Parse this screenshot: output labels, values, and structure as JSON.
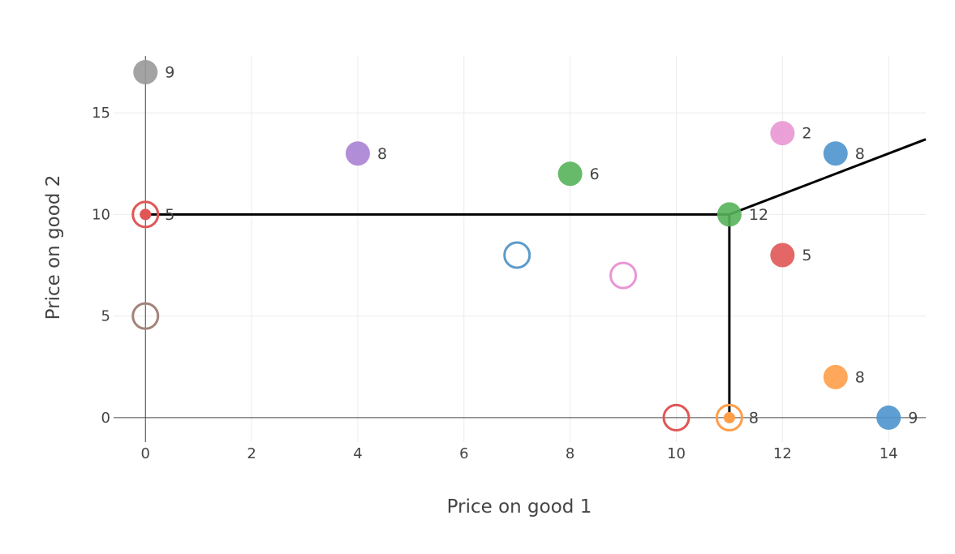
{
  "chart_data": {
    "type": "scatter",
    "title": "",
    "xlabel": "Price on good 1",
    "ylabel": "Price on good 2",
    "xlim": [
      -0.6,
      14.7
    ],
    "ylim": [
      -1.2,
      17.8
    ],
    "x_ticks": [
      0,
      2,
      4,
      6,
      8,
      10,
      12,
      14
    ],
    "y_ticks": [
      0,
      5,
      10,
      15
    ],
    "x_tick_labels": [
      "0",
      "2",
      "4",
      "6",
      "8",
      "10",
      "12",
      "14"
    ],
    "y_tick_labels": [
      "0",
      "5",
      "10",
      "15"
    ],
    "grid": true,
    "legend": "none",
    "points": [
      {
        "x": 0,
        "y": 17,
        "label": "9",
        "color": "#999999",
        "style": "filled"
      },
      {
        "x": 4,
        "y": 13,
        "label": "8",
        "color": "#a882d3",
        "style": "filled"
      },
      {
        "x": 8,
        "y": 12,
        "label": "6",
        "color": "#56b35a",
        "style": "filled"
      },
      {
        "x": 12,
        "y": 14,
        "label": "2",
        "color": "#e996d3",
        "style": "filled"
      },
      {
        "x": 13,
        "y": 13,
        "label": "8",
        "color": "#4e94cd",
        "style": "filled"
      },
      {
        "x": 0,
        "y": 10,
        "label": "5",
        "color": "#e05656",
        "style": "filled-ring"
      },
      {
        "x": 11,
        "y": 10,
        "label": "12",
        "color": "#56b35a",
        "style": "filled"
      },
      {
        "x": 12,
        "y": 8,
        "label": "5",
        "color": "#e05656",
        "style": "filled"
      },
      {
        "x": 7,
        "y": 8,
        "label": "",
        "color": "#5b9bcb",
        "style": "hollow"
      },
      {
        "x": 9,
        "y": 7,
        "label": "",
        "color": "#e996d3",
        "style": "hollow"
      },
      {
        "x": 0,
        "y": 5,
        "label": "",
        "color": "#a1837a",
        "style": "hollow"
      },
      {
        "x": 13,
        "y": 2,
        "label": "8",
        "color": "#ff9d48",
        "style": "filled"
      },
      {
        "x": 10,
        "y": 0,
        "label": "",
        "color": "#e05656",
        "style": "hollow"
      },
      {
        "x": 11,
        "y": 0,
        "label": "8",
        "color": "#ff9d48",
        "style": "filled-ring"
      },
      {
        "x": 14,
        "y": 0,
        "label": "9",
        "color": "#4e94cd",
        "style": "filled"
      }
    ],
    "lines": [
      {
        "points": [
          [
            0,
            10
          ],
          [
            11,
            10
          ]
        ],
        "color": "#000000"
      },
      {
        "points": [
          [
            11,
            0
          ],
          [
            11,
            10
          ]
        ],
        "color": "#000000"
      },
      {
        "points": [
          [
            11,
            10
          ],
          [
            14.7,
            13.7
          ]
        ],
        "color": "#000000"
      }
    ]
  }
}
